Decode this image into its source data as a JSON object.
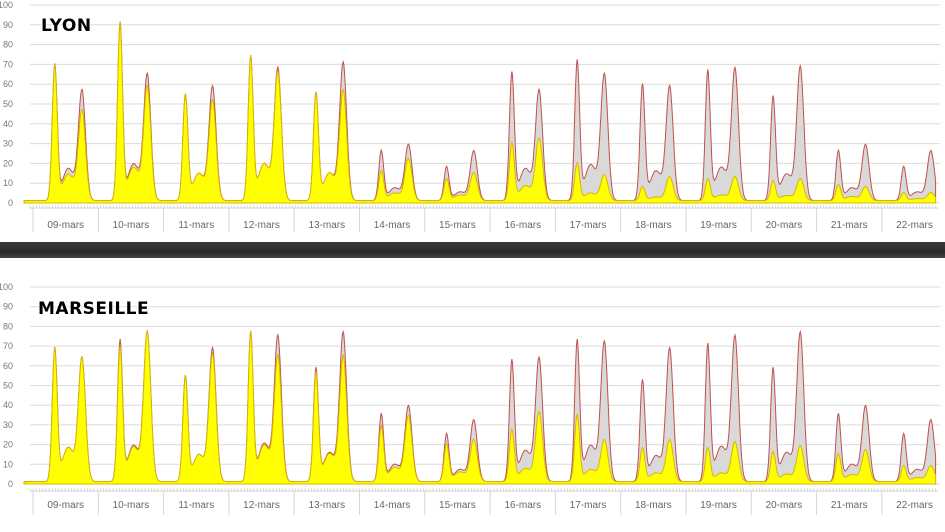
{
  "chart_data": [
    {
      "type": "area",
      "title": "LYON",
      "ylim": [
        0,
        100
      ],
      "yticks": [
        0,
        10,
        20,
        30,
        40,
        50,
        60,
        70,
        80,
        90,
        100
      ],
      "ytick_labels": [
        "0",
        "10",
        "20",
        "30",
        "40",
        "50",
        "60",
        "70",
        "80",
        "90",
        "100"
      ],
      "categories": [
        "09-mars",
        "10-mars",
        "11-mars",
        "12-mars",
        "13-mars",
        "14-mars",
        "15-mars",
        "16-mars",
        "17-mars",
        "18-mars",
        "19-mars",
        "20-mars",
        "21-mars",
        "22-mars"
      ],
      "grid": true,
      "series": [
        {
          "color": "#d9d9d9",
          "stroke": "#c0504d",
          "values": [
            [
              68,
              55
            ],
            [
              89,
              63
            ],
            [
              53,
              57
            ],
            [
              72,
              66
            ],
            [
              54,
              69
            ],
            [
              25,
              28
            ],
            [
              17,
              25
            ],
            [
              64,
              55
            ],
            [
              70,
              63
            ],
            [
              58,
              57
            ],
            [
              65,
              66
            ],
            [
              52,
              67
            ],
            [
              25,
              28
            ],
            [
              17,
              25
            ]
          ]
        },
        {
          "color": "#ffff00",
          "stroke": "#d4b800",
          "values": [
            [
              68,
              45
            ],
            [
              89,
              57
            ],
            [
              53,
              50
            ],
            [
              72,
              64
            ],
            [
              54,
              55
            ],
            [
              15,
              21
            ],
            [
              11,
              14
            ],
            [
              29,
              31
            ],
            [
              19,
              13
            ],
            [
              7,
              12
            ],
            [
              11,
              12
            ],
            [
              10,
              11
            ],
            [
              8,
              7
            ],
            [
              4,
              4
            ]
          ]
        }
      ]
    },
    {
      "type": "area",
      "title": "MARSEILLE",
      "ylim": [
        0,
        100
      ],
      "yticks": [
        0,
        10,
        20,
        30,
        40,
        50,
        60,
        70,
        80,
        90,
        100
      ],
      "ytick_labels": [
        "0",
        "10",
        "20",
        "30",
        "40",
        "50",
        "60",
        "70",
        "80",
        "90",
        "100"
      ],
      "categories": [
        "09-mars",
        "10-mars",
        "11-mars",
        "12-mars",
        "13-mars",
        "14-mars",
        "15-mars",
        "16-mars",
        "17-mars",
        "18-mars",
        "19-mars",
        "20-mars",
        "21-mars",
        "22-mars"
      ],
      "grid": true,
      "series": [
        {
          "color": "#d9d9d9",
          "stroke": "#c0504d",
          "values": [
            [
              67,
              62
            ],
            [
              71,
              75
            ],
            [
              53,
              67
            ],
            [
              75,
              73
            ],
            [
              57,
              75
            ],
            [
              34,
              38
            ],
            [
              24,
              31
            ],
            [
              61,
              62
            ],
            [
              71,
              70
            ],
            [
              51,
              67
            ],
            [
              69,
              73
            ],
            [
              57,
              75
            ],
            [
              34,
              38
            ],
            [
              24,
              31
            ]
          ]
        },
        {
          "color": "#ffff00",
          "stroke": "#d4b800",
          "values": [
            [
              67,
              62
            ],
            [
              68,
              75
            ],
            [
              53,
              64
            ],
            [
              75,
              63
            ],
            [
              55,
              63
            ],
            [
              28,
              33
            ],
            [
              19,
              21
            ],
            [
              26,
              35
            ],
            [
              34,
              21
            ],
            [
              17,
              21
            ],
            [
              17,
              20
            ],
            [
              15,
              18
            ],
            [
              14,
              16
            ],
            [
              8,
              8
            ]
          ]
        }
      ]
    }
  ]
}
